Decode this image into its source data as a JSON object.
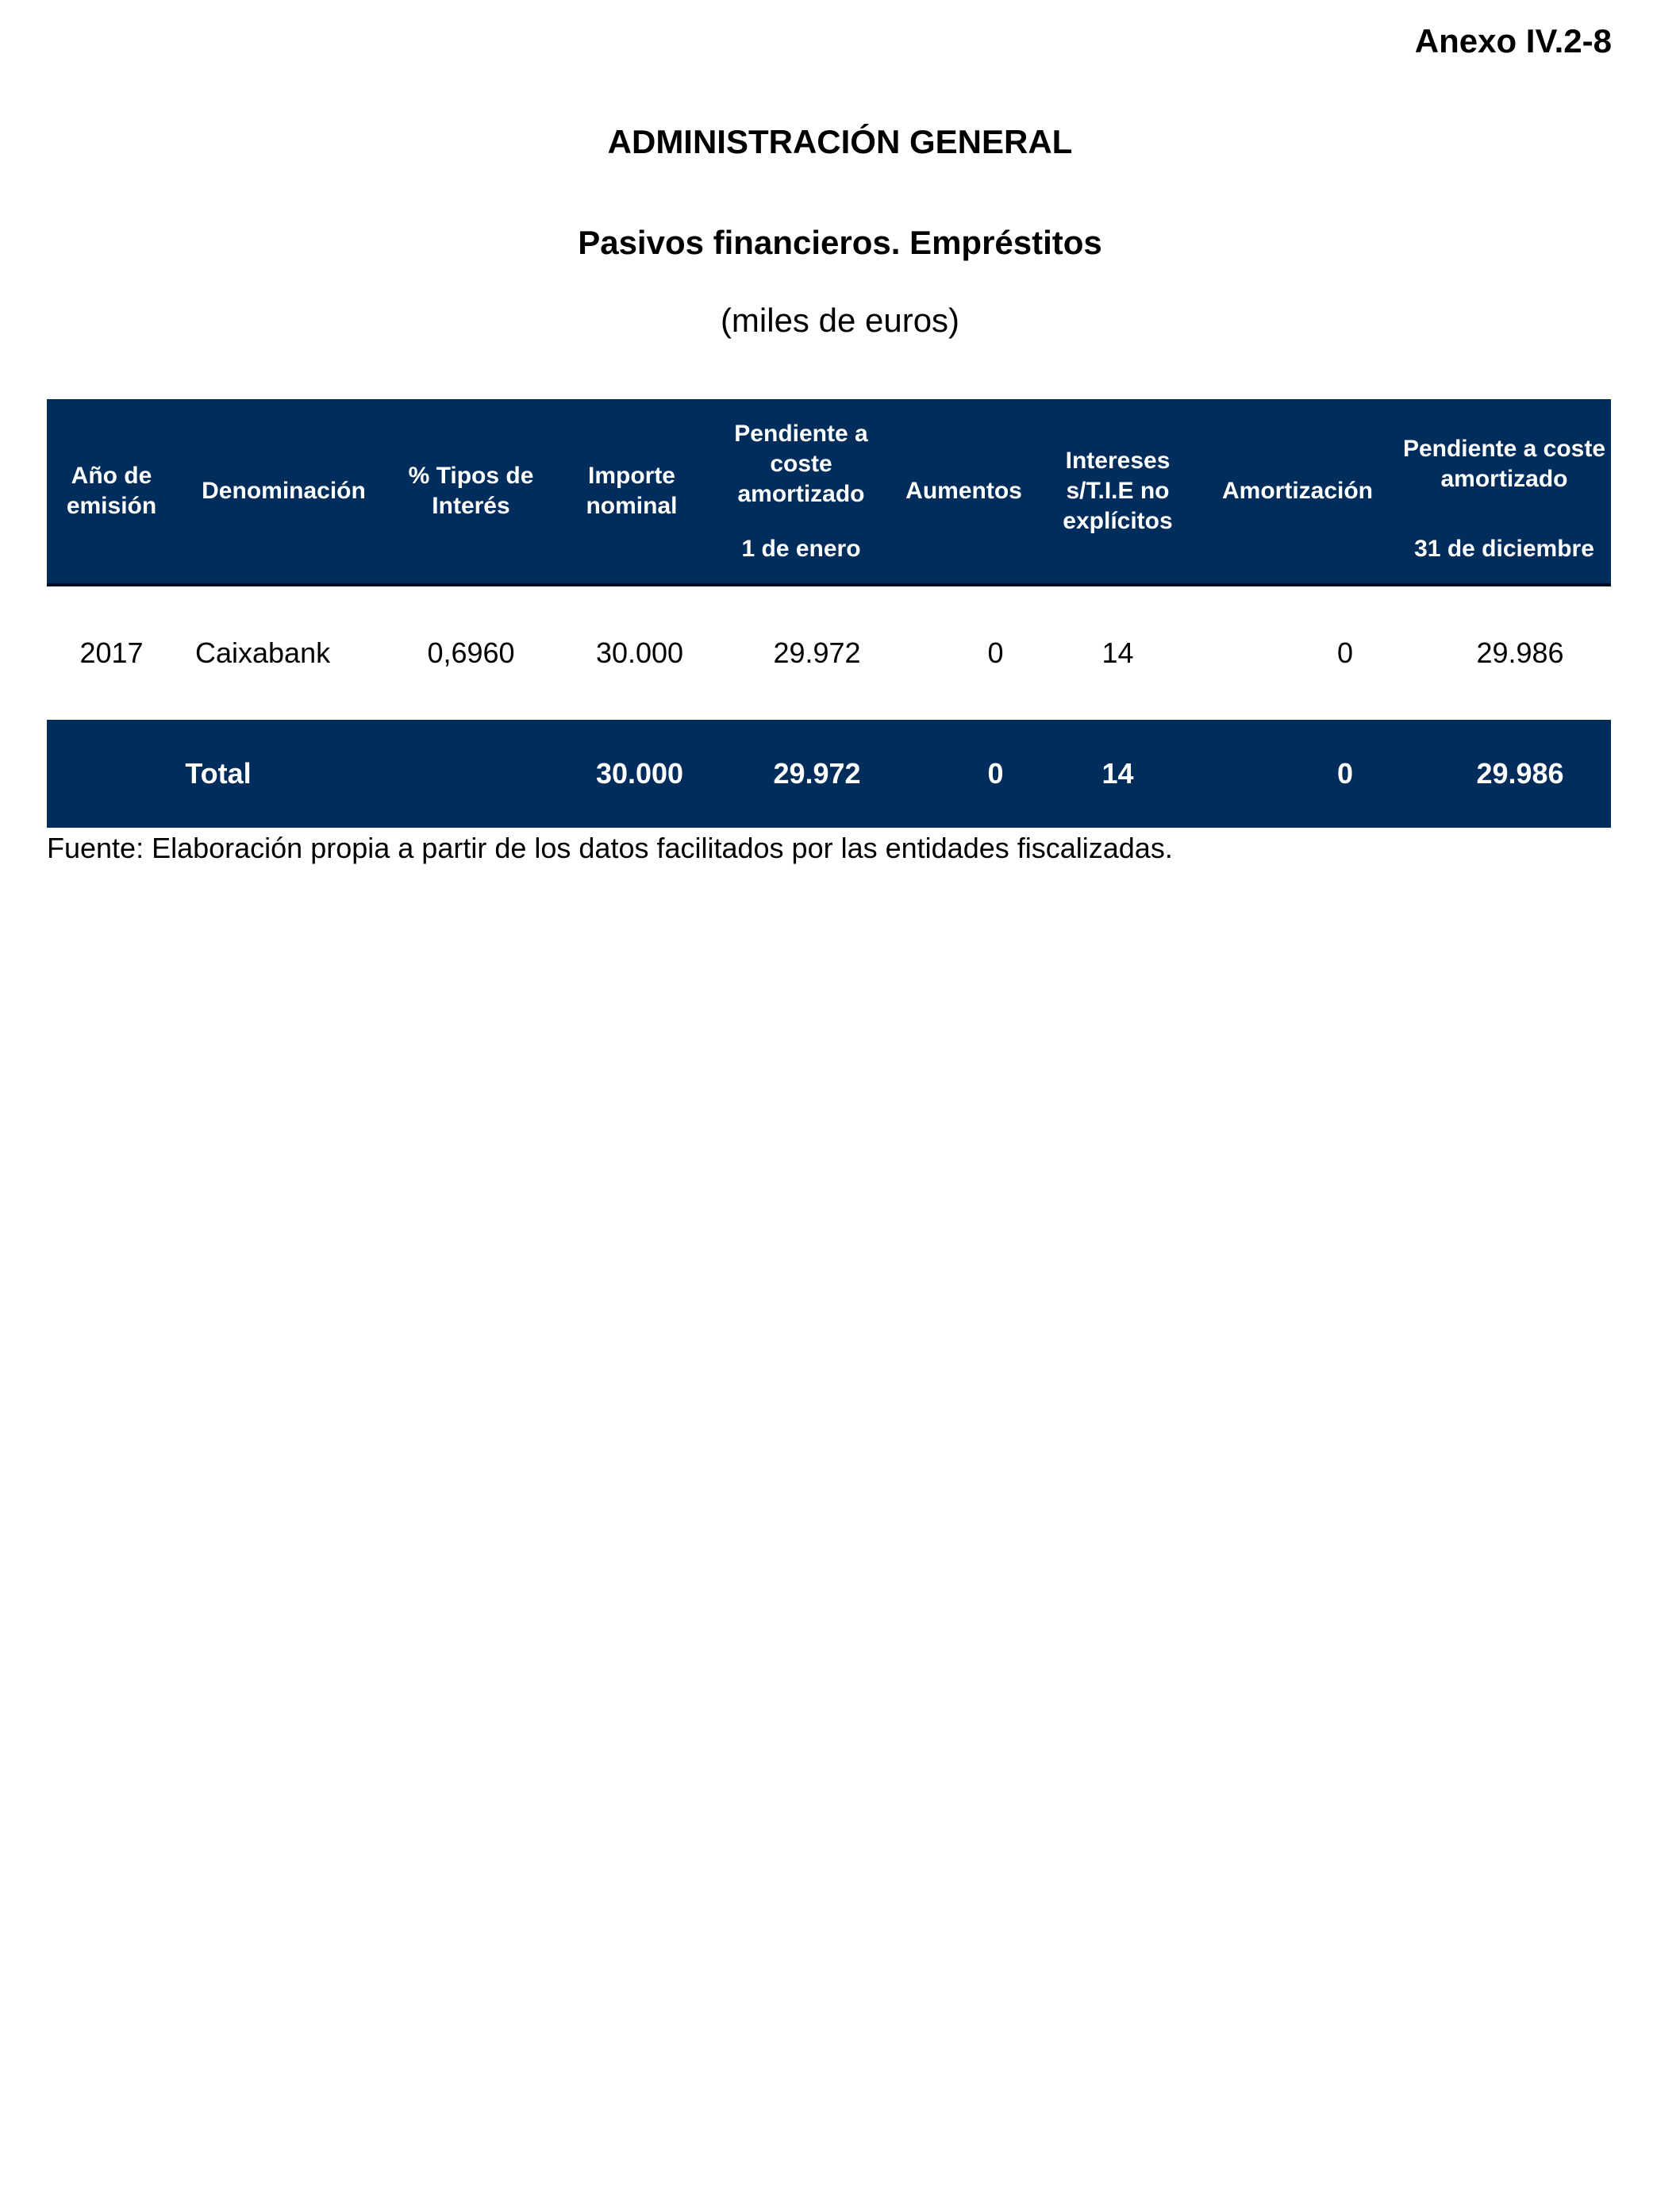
{
  "annex": "Anexo IV.2-8",
  "title": "ADMINISTRACIÓN GENERAL",
  "subtitle": "Pasivos financieros. Empréstitos",
  "units": "(miles de euros)",
  "table": {
    "headers": [
      "Año de emisión",
      "Denominación",
      "% Tipos de Interés",
      "Importe nominal",
      "Pendiente a coste amortizado",
      "Aumentos",
      "Intereses s/T.I.E no explícitos",
      "Amortización",
      "Pendiente a coste amortizado"
    ],
    "subheaders": {
      "opening": "1 de enero",
      "closing": "31 de diciembre"
    },
    "rows": [
      [
        "2017",
        "Caixabank",
        "0,6960",
        "30.000",
        "29.972",
        "0",
        "14",
        "0",
        "29.986"
      ]
    ],
    "total": {
      "label": "Total",
      "values": [
        "30.000",
        "29.972",
        "0",
        "14",
        "0",
        "29.986"
      ]
    }
  },
  "source": "Fuente: Elaboración propia a partir de los datos facilitados por las entidades fiscalizadas.",
  "colors": {
    "header_bg": "#002d5c"
  }
}
